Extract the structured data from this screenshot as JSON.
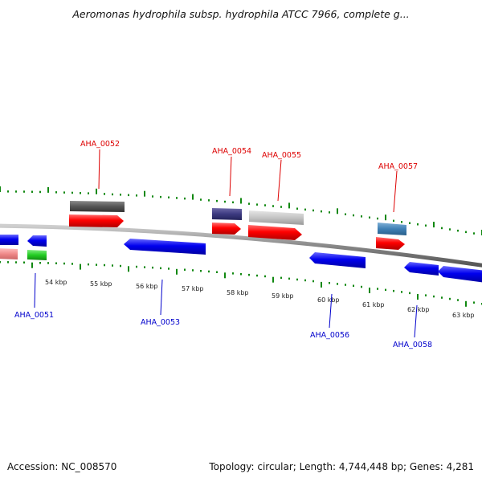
{
  "title": "Aeromonas hydrophila subsp. hydrophila ATCC 7966, complete g...",
  "footer": {
    "accession": "Accession: NC_008570",
    "summary": "Topology: circular; Length: 4,744,448 bp; Genes: 4,281"
  },
  "colors": {
    "forward_label": "#dd0000",
    "reverse_label": "#0000cc",
    "tick": "#118811",
    "backbone": "#888888"
  },
  "scale_labels": [
    "54 kbp",
    "55 kbp",
    "56 kbp",
    "57 kbp",
    "58 kbp",
    "59 kbp",
    "60 kbp",
    "61 kbp",
    "62 kbp",
    "63 kbp"
  ],
  "gene_labels_forward": [
    "AHA_0052",
    "AHA_0054",
    "AHA_0055",
    "AHA_0057"
  ],
  "gene_labels_reverse": [
    "AHA_0051",
    "AHA_0053",
    "AHA_0056",
    "AHA_0058"
  ]
}
